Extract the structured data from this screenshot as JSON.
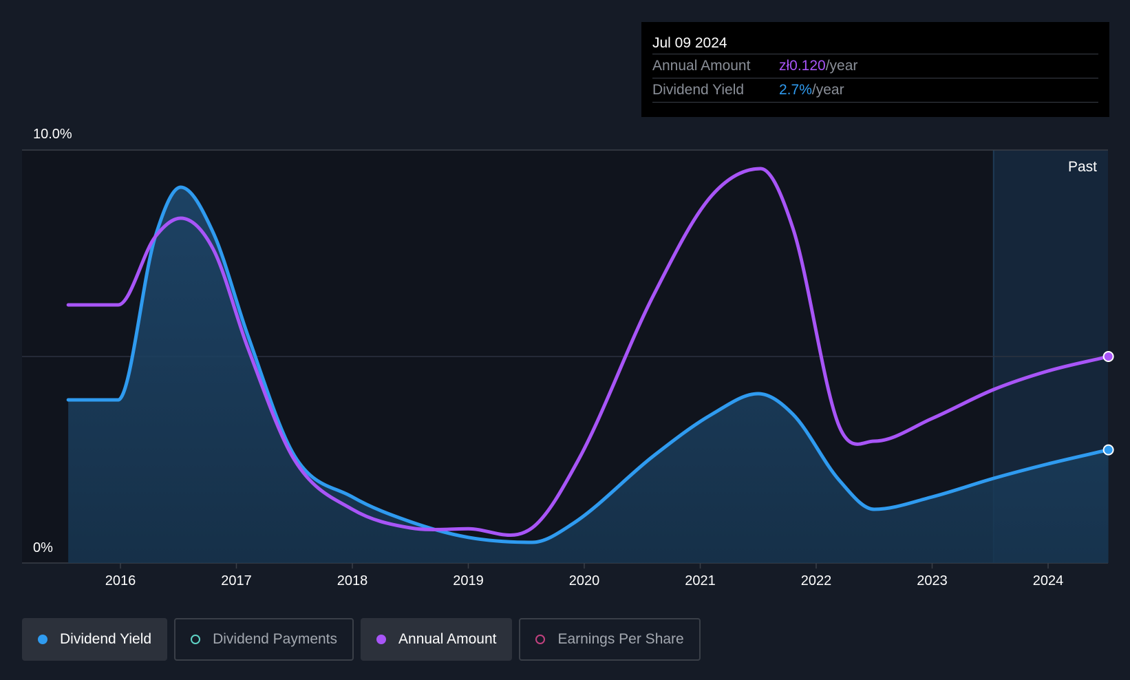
{
  "tooltip": {
    "date": "Jul 09 2024",
    "rows": [
      {
        "label": "Annual Amount",
        "value": "zł0.120",
        "unit": "/year"
      },
      {
        "label": "Dividend Yield",
        "value": "2.7%",
        "unit": "/year"
      }
    ]
  },
  "legend": [
    {
      "label": "Dividend Yield",
      "color": "#2f9bf0",
      "active": true,
      "filled": true
    },
    {
      "label": "Dividend Payments",
      "color": "#5fd3c6",
      "active": false,
      "filled": false
    },
    {
      "label": "Annual Amount",
      "color": "#a855f7",
      "active": true,
      "filled": true
    },
    {
      "label": "Earnings Per Share",
      "color": "#c2417f",
      "active": false,
      "filled": false
    }
  ],
  "chart_data": {
    "type": "line",
    "y_top_label": "10.0%",
    "y_bottom_label": "0%",
    "ylim": [
      0,
      10
    ],
    "xlim": [
      2015.55,
      2024.52
    ],
    "x_ticks": [
      2016,
      2017,
      2018,
      2019,
      2020,
      2021,
      2022,
      2023,
      2024
    ],
    "x_tick_labels": [
      "2016",
      "2017",
      "2018",
      "2019",
      "2020",
      "2021",
      "2022",
      "2023",
      "2024"
    ],
    "past_label": "Past",
    "past_start": 2023.53,
    "series": [
      {
        "name": "Dividend Yield",
        "color": "#2f9bf0",
        "area": true,
        "points": [
          [
            2015.55,
            3.95
          ],
          [
            2015.98,
            3.95
          ],
          [
            2016.3,
            7.9
          ],
          [
            2016.52,
            9.1
          ],
          [
            2016.8,
            8.0
          ],
          [
            2017.1,
            5.5
          ],
          [
            2017.5,
            2.6
          ],
          [
            2018.0,
            1.6
          ],
          [
            2018.5,
            1.0
          ],
          [
            2019.0,
            0.62
          ],
          [
            2019.55,
            0.5
          ],
          [
            2019.9,
            0.95
          ],
          [
            2020.6,
            2.6
          ],
          [
            2021.1,
            3.6
          ],
          [
            2021.5,
            4.1
          ],
          [
            2021.8,
            3.6
          ],
          [
            2022.2,
            2.0
          ],
          [
            2022.5,
            1.3
          ],
          [
            2023.0,
            1.6
          ],
          [
            2023.53,
            2.05
          ],
          [
            2024.0,
            2.4
          ],
          [
            2024.52,
            2.74
          ]
        ]
      },
      {
        "name": "Annual Amount",
        "color": "#a855f7",
        "area": false,
        "points": [
          [
            2015.55,
            6.25
          ],
          [
            2015.98,
            6.25
          ],
          [
            2016.3,
            7.9
          ],
          [
            2016.52,
            8.35
          ],
          [
            2016.8,
            7.6
          ],
          [
            2017.1,
            5.2
          ],
          [
            2017.5,
            2.5
          ],
          [
            2018.0,
            1.3
          ],
          [
            2018.5,
            0.85
          ],
          [
            2019.0,
            0.83
          ],
          [
            2019.55,
            0.85
          ],
          [
            2019.95,
            2.5
          ],
          [
            2020.6,
            6.5
          ],
          [
            2021.1,
            8.9
          ],
          [
            2021.52,
            9.55
          ],
          [
            2021.8,
            8.1
          ],
          [
            2022.2,
            3.3
          ],
          [
            2022.5,
            2.95
          ],
          [
            2023.0,
            3.5
          ],
          [
            2023.53,
            4.2
          ],
          [
            2024.0,
            4.65
          ],
          [
            2024.52,
            5.0
          ]
        ]
      }
    ]
  }
}
